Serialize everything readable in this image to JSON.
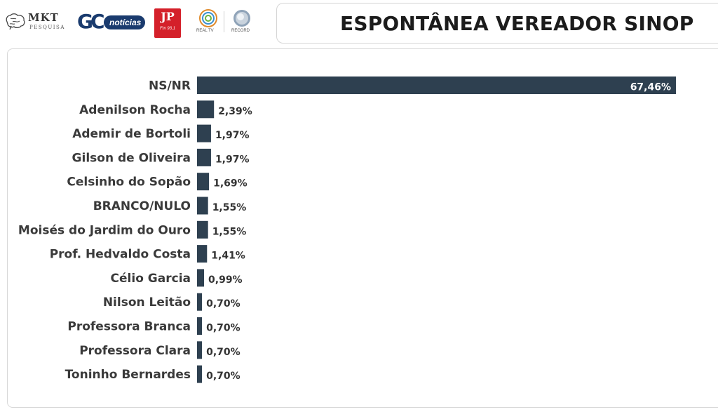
{
  "logos": {
    "mkt": {
      "name": "MKT",
      "sub": "PESQUISA"
    },
    "gc": {
      "letters": "GC",
      "word": "notícias"
    },
    "jp": {
      "mark": "JP",
      "sub": "Fm 93,1"
    },
    "realtv": {
      "name": "REAL TV"
    },
    "record": {
      "name": "RECORD"
    }
  },
  "title": "ESPONTÂNEA VEREADOR SINOP",
  "colors": {
    "bar": "#2e4050",
    "label": "#3a3a3a"
  },
  "chart_data": {
    "type": "bar",
    "orientation": "horizontal",
    "categories": [
      "NS/NR",
      "Adenilson Rocha",
      "Ademir de Bortoli",
      "Gilson de Oliveira",
      "Celsinho do Sopão",
      "BRANCO/NULO",
      "Moisés do Jardim do Ouro",
      "Prof. Hedvaldo Costa",
      "Célio Garcia",
      "Nilson Leitão",
      "Professora Branca",
      "Professora Clara",
      "Toninho Bernardes"
    ],
    "values": [
      67.46,
      2.39,
      1.97,
      1.97,
      1.69,
      1.55,
      1.55,
      1.41,
      0.99,
      0.7,
      0.7,
      0.7,
      0.7
    ],
    "value_labels": [
      "67,46%",
      "2,39%",
      "1,97%",
      "1,97%",
      "1,69%",
      "1,55%",
      "1,55%",
      "1,41%",
      "0,99%",
      "0,70%",
      "0,70%",
      "0,70%",
      "0,70%"
    ],
    "xlim": [
      0,
      67.46
    ],
    "grid": false,
    "legend": "none"
  }
}
